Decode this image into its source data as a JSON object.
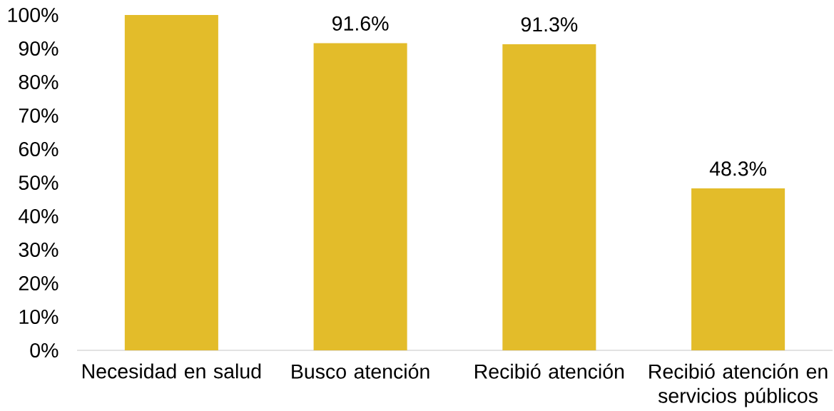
{
  "chart_data": {
    "type": "bar",
    "categories": [
      "Necesidad en salud",
      "Busco atención",
      "Recibió atención",
      "Recibió atención en servicios públicos"
    ],
    "values": [
      100,
      91.6,
      91.3,
      48.3
    ],
    "color": "#e3bc2a",
    "value_labels": [
      null,
      "91.6%",
      "91.3%",
      "48.3%"
    ],
    "ylim": [
      0,
      100
    ],
    "yticks": [
      {
        "value": 0,
        "label": "0%"
      },
      {
        "value": 10,
        "label": "10%"
      },
      {
        "value": 20,
        "label": "20%"
      },
      {
        "value": 30,
        "label": "30%"
      },
      {
        "value": 40,
        "label": "40%"
      },
      {
        "value": 50,
        "label": "50%"
      },
      {
        "value": 60,
        "label": "60%"
      },
      {
        "value": 70,
        "label": "70%"
      },
      {
        "value": 80,
        "label": "80%"
      },
      {
        "value": 90,
        "label": "90%"
      },
      {
        "value": 100,
        "label": "100%"
      }
    ]
  }
}
